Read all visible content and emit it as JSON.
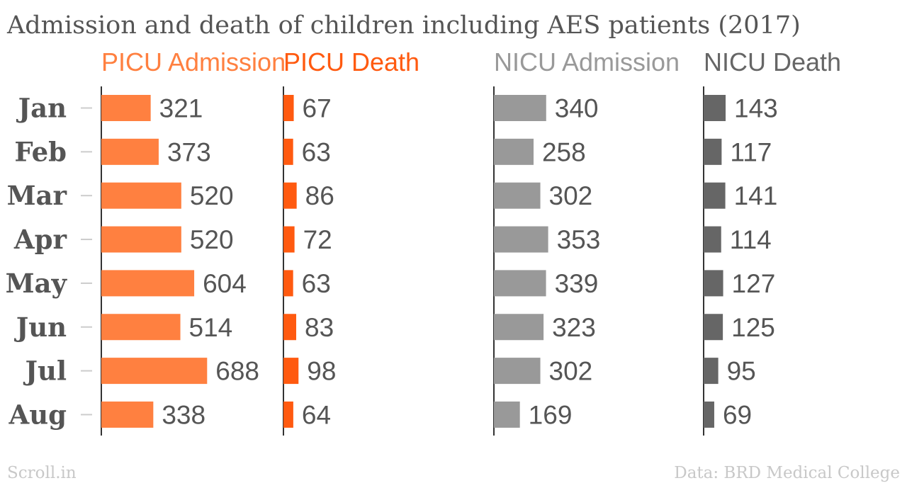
{
  "chart_data": {
    "type": "bar",
    "orientation": "horizontal",
    "title": "Admission and death of children including AES patients (2017)",
    "categories": [
      "Jan",
      "Feb",
      "Mar",
      "Apr",
      "May",
      "Jun",
      "Jul",
      "Aug"
    ],
    "series": [
      {
        "name": "PICU Admission",
        "color": "#ff8040",
        "values": [
          321,
          373,
          520,
          520,
          604,
          514,
          688,
          338
        ]
      },
      {
        "name": "PICU Death",
        "color": "#ff5a10",
        "values": [
          67,
          63,
          86,
          72,
          63,
          83,
          98,
          64
        ]
      },
      {
        "name": "NICU Admission",
        "color": "#999999",
        "values": [
          340,
          258,
          302,
          353,
          339,
          323,
          302,
          169
        ]
      },
      {
        "name": "NICU Death",
        "color": "#666666",
        "values": [
          143,
          117,
          141,
          114,
          127,
          125,
          95,
          69
        ]
      }
    ],
    "grid": false,
    "legend": "none"
  },
  "footer": {
    "source_left": "Scroll.in",
    "source_right": "Data: BRD Medical College"
  }
}
